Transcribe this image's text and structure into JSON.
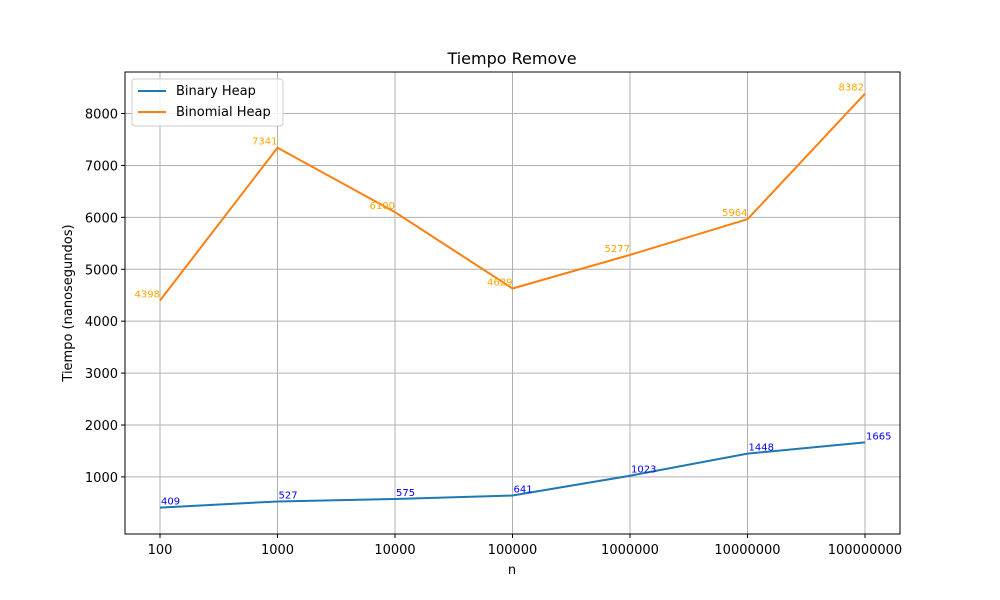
{
  "chart_data": {
    "type": "line",
    "title": "Tiempo Remove",
    "xlabel": "n",
    "ylabel": "Tiempo (nanosegundos)",
    "categories": [
      "100",
      "1000",
      "10000",
      "100000",
      "1000000",
      "10000000",
      "100000000"
    ],
    "ylim": [
      -100,
      8800
    ],
    "yticks": [
      1000,
      2000,
      3000,
      4000,
      5000,
      6000,
      7000,
      8000
    ],
    "grid": true,
    "legend_position": "top-left",
    "series": [
      {
        "name": "Binary Heap",
        "color": "#1f77b4",
        "label_color": "#0000ff",
        "values": [
          409,
          527,
          575,
          641,
          1023,
          1448,
          1665
        ]
      },
      {
        "name": "Binomial Heap",
        "color": "#ff7f0e",
        "label_color": "#ffa500",
        "values": [
          4398,
          7341,
          6100,
          4629,
          5277,
          5964,
          8382
        ]
      }
    ]
  }
}
